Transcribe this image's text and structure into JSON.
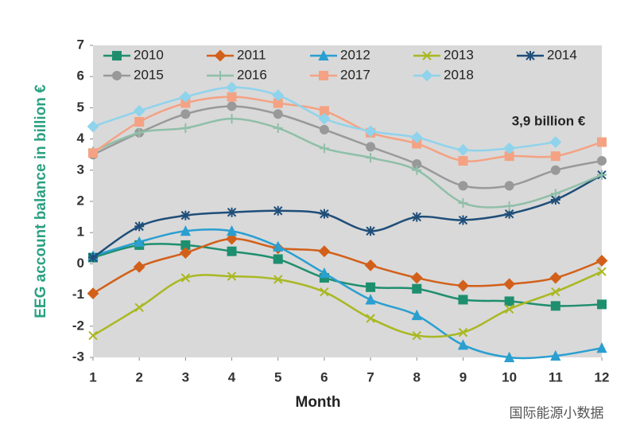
{
  "chart_data": {
    "type": "line",
    "ylabel": "EEG account balance in billion €",
    "xlabel": "Month",
    "annotation": "3,9 billion €",
    "watermark": "国际能源小数据",
    "x": [
      1,
      2,
      3,
      4,
      5,
      6,
      7,
      8,
      9,
      10,
      11,
      12
    ],
    "xlim": [
      1,
      12
    ],
    "xticks": [
      1,
      2,
      3,
      4,
      5,
      6,
      7,
      8,
      9,
      10,
      11,
      12
    ],
    "ylim": [
      -3,
      7
    ],
    "yticks": [
      -3,
      -2,
      -1,
      0,
      1,
      2,
      3,
      4,
      5,
      6,
      7
    ],
    "smooth": true,
    "series": [
      {
        "name": "2010",
        "color": "#1e8f6e",
        "marker": "square",
        "values": [
          0.2,
          0.6,
          0.6,
          0.4,
          0.15,
          -0.45,
          -0.75,
          -0.8,
          -1.15,
          -1.2,
          -1.35,
          -1.3
        ]
      },
      {
        "name": "2011",
        "color": "#d2601a",
        "marker": "diamond",
        "values": [
          -0.95,
          -0.1,
          0.35,
          0.8,
          0.5,
          0.4,
          -0.05,
          -0.45,
          -0.7,
          -0.65,
          -0.45,
          0.1
        ]
      },
      {
        "name": "2012",
        "color": "#2a9fd0",
        "marker": "triangle",
        "values": [
          0.25,
          0.7,
          1.05,
          1.05,
          0.55,
          -0.3,
          -1.15,
          -1.65,
          -2.6,
          -3.0,
          -2.95,
          -2.7
        ]
      },
      {
        "name": "2013",
        "color": "#a9b822",
        "marker": "x",
        "values": [
          -2.3,
          -1.4,
          -0.45,
          -0.4,
          -0.5,
          -0.9,
          -1.75,
          -2.3,
          -2.2,
          -1.45,
          -0.9,
          -0.25
        ]
      },
      {
        "name": "2014",
        "color": "#1f4e79",
        "marker": "asterisk",
        "values": [
          0.2,
          1.2,
          1.55,
          1.65,
          1.7,
          1.6,
          1.05,
          1.5,
          1.4,
          1.6,
          2.05,
          2.85
        ]
      },
      {
        "name": "2015",
        "color": "#999999",
        "marker": "circle",
        "values": [
          3.5,
          4.2,
          4.8,
          5.05,
          4.8,
          4.3,
          3.75,
          3.2,
          2.5,
          2.5,
          3.0,
          3.3
        ]
      },
      {
        "name": "2016",
        "color": "#8fbfa8",
        "marker": "plus",
        "values": [
          3.6,
          4.2,
          4.35,
          4.65,
          4.35,
          3.7,
          3.4,
          3.0,
          1.95,
          1.85,
          2.25,
          2.85
        ]
      },
      {
        "name": "2017",
        "color": "#f4a283",
        "marker": "square",
        "values": [
          3.55,
          4.55,
          5.15,
          5.35,
          5.15,
          4.9,
          4.2,
          3.85,
          3.3,
          3.45,
          3.45,
          3.9
        ]
      },
      {
        "name": "2018",
        "color": "#8fd3ec",
        "marker": "diamond",
        "values": [
          4.4,
          4.9,
          5.35,
          5.65,
          5.4,
          4.65,
          4.25,
          4.05,
          3.65,
          3.7,
          3.9,
          null
        ]
      }
    ]
  }
}
